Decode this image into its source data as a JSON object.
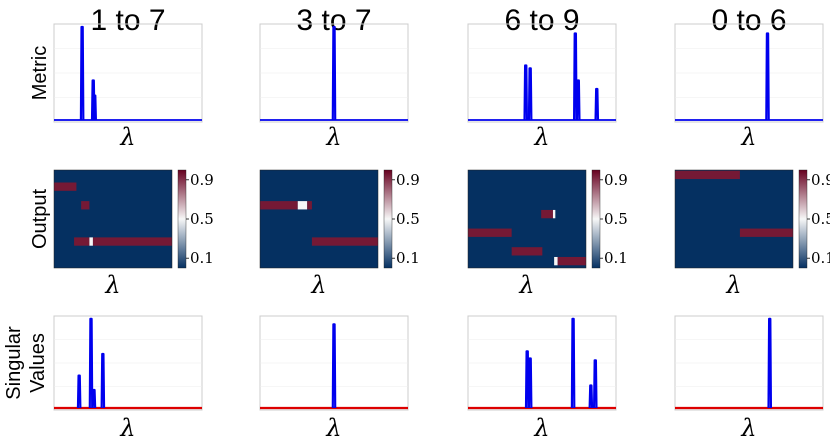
{
  "colors": {
    "line": "#0000ee",
    "baseline_red": "#dd0000",
    "heat_low": "#053061",
    "heat_mid": "#f7f7f7",
    "heat_high": "#67001f",
    "grid": "#cccccc"
  },
  "chart_data": {
    "type": "figure-grid",
    "columns": [
      "1 to 7",
      "3 to 7",
      "6 to 9",
      "0 to 6"
    ],
    "rows": [
      "Metric",
      "Output",
      "Singular Values"
    ],
    "row_label_lines": [
      [
        "Metric"
      ],
      [
        "Output"
      ],
      [
        "Singular",
        "Values"
      ]
    ],
    "xlabel": "λ",
    "colorbar_ticks": [
      "0.9",
      "0.5",
      "0.1"
    ],
    "colorbar_tick_values": [
      0.9,
      0.5,
      0.1
    ],
    "colorbar_range": [
      0.0,
      1.0
    ],
    "x_range": [
      0,
      1
    ],
    "y_range": [
      0,
      1
    ],
    "metric": [
      {
        "column": "1 to 7",
        "peaks": [
          {
            "x": 0.19,
            "h": 0.99
          },
          {
            "x": 0.265,
            "h": 0.42
          },
          {
            "x": 0.275,
            "h": 0.26
          }
        ]
      },
      {
        "column": "3 to 7",
        "peaks": [
          {
            "x": 0.5,
            "h": 0.99
          }
        ]
      },
      {
        "column": "6 to 9",
        "peaks": [
          {
            "x": 0.39,
            "h": 0.58
          },
          {
            "x": 0.42,
            "h": 0.55
          },
          {
            "x": 0.725,
            "h": 0.92
          },
          {
            "x": 0.745,
            "h": 0.42
          },
          {
            "x": 0.87,
            "h": 0.33
          }
        ]
      },
      {
        "column": "0 to 6",
        "peaks": [
          {
            "x": 0.625,
            "h": 0.92
          }
        ]
      }
    ],
    "output": [
      {
        "column": "1 to 7",
        "segments": [
          {
            "row": 0.17,
            "x0": 0.0,
            "x1": 0.19,
            "v": 0.95
          },
          {
            "row": 0.36,
            "x0": 0.23,
            "x1": 0.3,
            "v": 0.95
          },
          {
            "row": 0.73,
            "x0": 0.17,
            "x1": 0.3,
            "v": 0.95
          },
          {
            "row": 0.73,
            "x0": 0.3,
            "x1": 0.33,
            "v": 0.5
          },
          {
            "row": 0.73,
            "x0": 0.33,
            "x1": 1.0,
            "v": 0.95
          }
        ]
      },
      {
        "column": "3 to 7",
        "segments": [
          {
            "row": 0.36,
            "x0": 0.0,
            "x1": 0.32,
            "v": 0.95
          },
          {
            "row": 0.36,
            "x0": 0.32,
            "x1": 0.4,
            "v": 0.5
          },
          {
            "row": 0.36,
            "x0": 0.4,
            "x1": 0.44,
            "v": 0.95
          },
          {
            "row": 0.73,
            "x0": 0.44,
            "x1": 1.0,
            "v": 0.95
          }
        ]
      },
      {
        "column": "6 to 9",
        "segments": [
          {
            "row": 0.45,
            "x0": 0.62,
            "x1": 0.72,
            "v": 0.95
          },
          {
            "row": 0.45,
            "x0": 0.72,
            "x1": 0.74,
            "v": 0.5
          },
          {
            "row": 0.64,
            "x0": 0.0,
            "x1": 0.37,
            "v": 0.95
          },
          {
            "row": 0.83,
            "x0": 0.37,
            "x1": 0.63,
            "v": 0.95
          },
          {
            "row": 0.93,
            "x0": 0.73,
            "x1": 0.76,
            "v": 0.5
          },
          {
            "row": 0.93,
            "x0": 0.76,
            "x1": 1.0,
            "v": 0.95
          }
        ]
      },
      {
        "column": "0 to 6",
        "segments": [
          {
            "row": 0.05,
            "x0": 0.0,
            "x1": 0.55,
            "v": 0.95
          },
          {
            "row": 0.64,
            "x0": 0.55,
            "x1": 1.0,
            "v": 0.95
          }
        ]
      }
    ],
    "singular_values": [
      {
        "column": "1 to 7",
        "peaks": [
          {
            "x": 0.17,
            "h": 0.36
          },
          {
            "x": 0.25,
            "h": 0.99
          },
          {
            "x": 0.27,
            "h": 0.2
          },
          {
            "x": 0.33,
            "h": 0.6
          }
        ]
      },
      {
        "column": "3 to 7",
        "peaks": [
          {
            "x": 0.5,
            "h": 0.93
          }
        ]
      },
      {
        "column": "6 to 9",
        "peaks": [
          {
            "x": 0.4,
            "h": 0.63
          },
          {
            "x": 0.42,
            "h": 0.55
          },
          {
            "x": 0.71,
            "h": 0.99
          },
          {
            "x": 0.83,
            "h": 0.25
          },
          {
            "x": 0.86,
            "h": 0.53
          }
        ]
      },
      {
        "column": "0 to 6",
        "peaks": [
          {
            "x": 0.64,
            "h": 0.99
          }
        ]
      }
    ]
  }
}
